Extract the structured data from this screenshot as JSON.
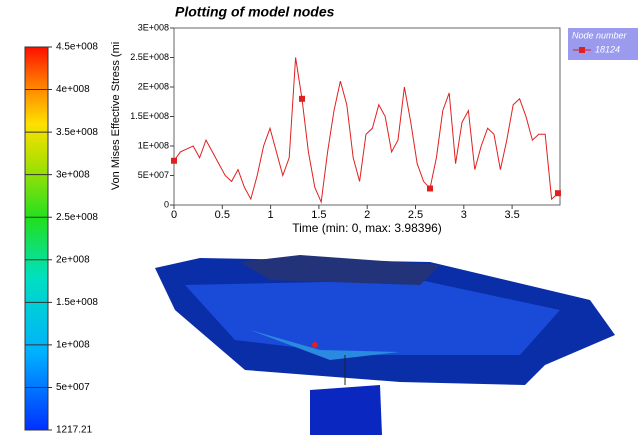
{
  "chart_data": [
    {
      "type": "line",
      "title": "Plotting of model nodes",
      "y_label": "Von Mises Effective Stress (mi",
      "x_label": "Time (min: 0, max: 3.98396)",
      "legend_title": "Node number",
      "xlim": [
        0,
        3.98396
      ],
      "xticks": [
        0,
        0.5,
        1,
        1.5,
        2,
        2.5,
        3,
        3.5
      ],
      "ylim": [
        0,
        300000000
      ],
      "yticks": [
        0,
        {
          "value": 50000000,
          "label": "5E+007"
        },
        {
          "value": 100000000,
          "label": "1E+008"
        },
        {
          "value": 150000000,
          "label": "1.5E+008"
        },
        {
          "value": 200000000,
          "label": "2E+008"
        },
        {
          "value": 250000000,
          "label": "2.5E+008"
        },
        {
          "value": 300000000,
          "label": "3E+008"
        }
      ],
      "x": [
        0,
        0.06625,
        0.1325,
        0.19875,
        0.265,
        0.33125,
        0.3975,
        0.46375,
        0.53,
        0.59625,
        0.6625,
        0.72875,
        0.795,
        0.86125,
        0.9275,
        0.99375,
        1.06,
        1.12625,
        1.1925,
        1.25875,
        1.325,
        1.39125,
        1.4575,
        1.52375,
        1.59,
        1.65625,
        1.7225,
        1.78875,
        1.855,
        1.92125,
        1.9875,
        2.05375,
        2.12,
        2.18625,
        2.2525,
        2.31875,
        2.385,
        2.45125,
        2.5175,
        2.58375,
        2.65,
        2.71625,
        2.7825,
        2.84875,
        2.915,
        2.98125,
        3.0475,
        3.11375,
        3.18,
        3.24625,
        3.3125,
        3.37875,
        3.445,
        3.51125,
        3.5775,
        3.64375,
        3.71,
        3.77625,
        3.8425,
        3.90875,
        3.975
      ],
      "series": [
        {
          "name": "18124",
          "color": "#e02020",
          "values": [
            75000000,
            90000000,
            95000000,
            100000000,
            80000000,
            110000000,
            90000000,
            70000000,
            50000000,
            40000000,
            60000000,
            30000000,
            10000000,
            50000000,
            100000000,
            130000000,
            90000000,
            50000000,
            80000000,
            250000000,
            180000000,
            90000000,
            30000000,
            5000000,
            90000000,
            160000000,
            210000000,
            170000000,
            80000000,
            40000000,
            120000000,
            130000000,
            170000000,
            150000000,
            90000000,
            110000000,
            200000000,
            140000000,
            70000000,
            40000000,
            28000000,
            80000000,
            160000000,
            190000000,
            70000000,
            140000000,
            160000000,
            60000000,
            100000000,
            130000000,
            120000000,
            60000000,
            110000000,
            170000000,
            180000000,
            150000000,
            110000000,
            120000000,
            120000000,
            10000000,
            20000000
          ]
        }
      ]
    },
    {
      "type": "colorbar",
      "ylim": [
        1217.21,
        450000000
      ],
      "yticks": [
        1217.21,
        {
          "value": 50000000,
          "label": "5e+007"
        },
        {
          "value": 100000000,
          "label": "1e+008"
        },
        {
          "value": 150000000,
          "label": "1.5e+008"
        },
        {
          "value": 200000000,
          "label": "2e+008"
        },
        {
          "value": 250000000,
          "label": "2.5e+008"
        },
        {
          "value": 300000000,
          "label": "3e+008"
        },
        {
          "value": 350000000,
          "label": "3.5e+008"
        },
        {
          "value": 400000000,
          "label": "4e+008"
        },
        {
          "value": 450000000,
          "label": "4.5e+008"
        }
      ]
    }
  ]
}
